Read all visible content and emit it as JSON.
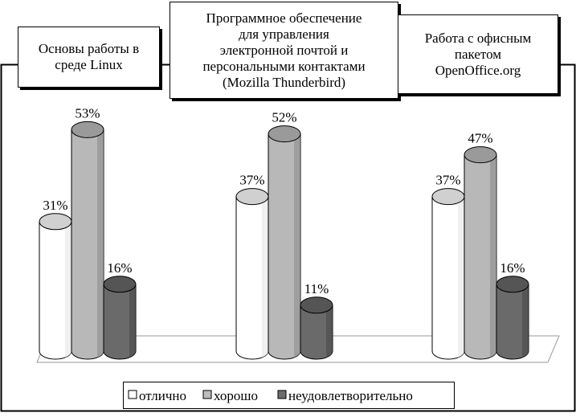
{
  "chart_data": {
    "type": "bar",
    "categories": [
      "Основы работы в\nсреде Linux",
      "Программное обеспечение\nдля управления\nэлектронной почтой и\nперсональными контактами\n(Mozilla Thunderbird)",
      "Работа с офисным\nпакетом\nOpenOffice.org"
    ],
    "series": [
      {
        "name": "отлично",
        "values": [
          31,
          37,
          37
        ],
        "labels": [
          "31%",
          "37%",
          "37%"
        ],
        "color": "#ffffff"
      },
      {
        "name": "хорошо",
        "values": [
          53,
          52,
          47
        ],
        "labels": [
          "53%",
          "52%",
          "47%"
        ],
        "color": "#bdbdbd"
      },
      {
        "name": "неудовлетворительно",
        "values": [
          16,
          11,
          16
        ],
        "labels": [
          "16%",
          "11%",
          "16%"
        ],
        "color": "#6e6e6e"
      }
    ],
    "unit": "%",
    "ylim": [
      0,
      60
    ],
    "legend_position": "bottom"
  }
}
